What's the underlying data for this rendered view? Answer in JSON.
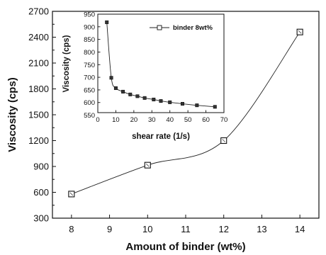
{
  "chart_data": [
    {
      "type": "line",
      "title": "",
      "xlabel": "Amount of binder (wt%)",
      "ylabel": "Viscosity (cps)",
      "xlim": [
        7.5,
        14.5
      ],
      "ylim": [
        300,
        2700
      ],
      "xticks": [
        "8",
        "9",
        "10",
        "11",
        "12",
        "13",
        "14"
      ],
      "yticks": [
        "300",
        "600",
        "900",
        "1200",
        "1500",
        "1800",
        "2100",
        "2400",
        "2700"
      ],
      "grid": false,
      "x": [
        8,
        10,
        12,
        14
      ],
      "series": [
        {
          "values": [
            580,
            915,
            1200,
            2460
          ]
        }
      ]
    },
    {
      "type": "line",
      "title": "",
      "xlabel": "shear rate (1/s)",
      "ylabel": "Viscosity (cps)",
      "xlim": [
        0,
        70
      ],
      "ylim": [
        560,
        950
      ],
      "xticks": [
        "0",
        "10",
        "20",
        "30",
        "40",
        "50",
        "60",
        "70"
      ],
      "yticks": [
        "550",
        "600",
        "650",
        "700",
        "750",
        "800",
        "850",
        "900",
        "950"
      ],
      "grid": false,
      "legend": "top-right",
      "x": [
        5,
        7.5,
        10,
        14,
        18,
        22,
        26,
        31,
        35,
        40,
        47,
        55,
        65
      ],
      "series": [
        {
          "name": "binder 8wt%",
          "values": [
            918,
            698,
            657,
            643,
            632,
            625,
            618,
            612,
            606,
            601,
            595,
            589,
            583
          ]
        }
      ]
    }
  ]
}
